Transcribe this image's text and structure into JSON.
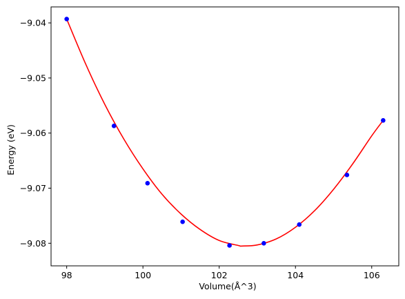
{
  "chart_data": {
    "type": "scatter",
    "xlabel": "Volume(Å^3)",
    "ylabel": "Energy (eV)",
    "xlim": [
      97.59,
      106.71
    ],
    "ylim": [
      -9.0841,
      -9.0371
    ],
    "xticks": [
      98,
      100,
      102,
      104,
      106
    ],
    "xtick_labels": [
      "98",
      "100",
      "102",
      "104",
      "106"
    ],
    "yticks": [
      -9.04,
      -9.05,
      -9.06,
      -9.07,
      -9.08
    ],
    "ytick_labels": [
      "−9.04",
      "−9.05",
      "−9.06",
      "−9.07",
      "−9.08"
    ],
    "grid": false,
    "series": [
      {
        "kind": "points",
        "color": "#0000ff",
        "x": [
          98.0,
          99.24,
          100.12,
          101.04,
          102.27,
          103.17,
          104.1,
          105.35,
          106.3
        ],
        "y": [
          -9.0393,
          -9.0587,
          -9.0691,
          -9.0761,
          -9.0804,
          -9.08,
          -9.0766,
          -9.0676,
          -9.0577
        ]
      },
      {
        "kind": "fit-curve",
        "color": "#ff0000",
        "x": [
          98.0,
          98.5,
          99.0,
          99.5,
          100.0,
          100.5,
          101.0,
          101.5,
          102.0,
          102.5,
          102.6,
          103.0,
          103.5,
          104.0,
          104.5,
          105.0,
          105.5,
          106.0,
          106.3
        ],
        "y": [
          -9.0393,
          -9.0475,
          -9.0548,
          -9.0611,
          -9.0665,
          -9.0711,
          -9.0747,
          -9.0775,
          -9.0795,
          -9.0804,
          -9.0805,
          -9.0803,
          -9.0792,
          -9.0771,
          -9.0741,
          -9.0702,
          -9.0656,
          -9.0605,
          -9.0577
        ]
      }
    ]
  }
}
